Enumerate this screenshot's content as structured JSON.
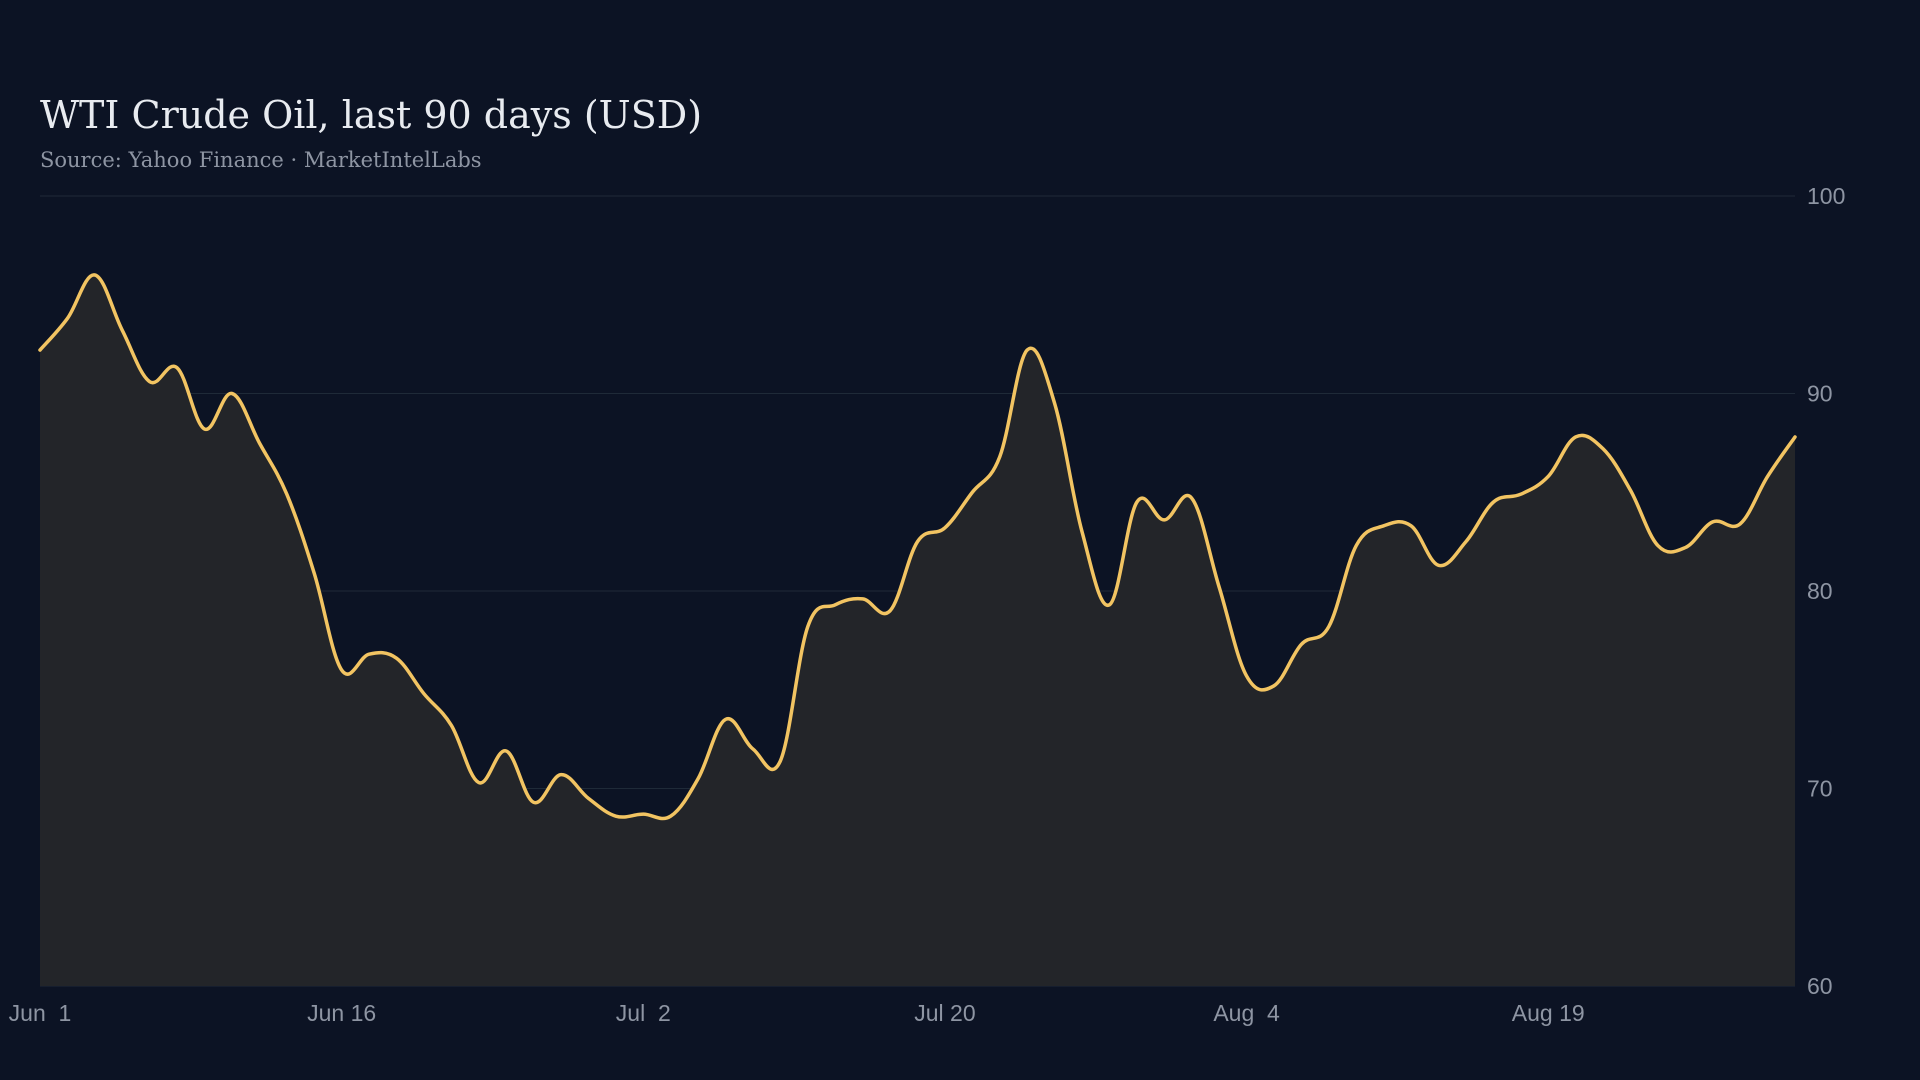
{
  "chart_data": {
    "type": "area",
    "title": "WTI Crude Oil, last 90 days (USD)",
    "subtitle": "Source: Yahoo Finance · MarketIntelLabs",
    "xlabel": "",
    "ylabel": "",
    "ylim": [
      60,
      100
    ],
    "y_ticks": [
      "60",
      "70",
      "80",
      "90",
      "100"
    ],
    "y_axis_side": "right",
    "grid": true,
    "legend": "none",
    "x_ticks": [
      {
        "label": "Jun  1",
        "index": 0
      },
      {
        "label": "Jun 16",
        "index": 11
      },
      {
        "label": "Jul  2",
        "index": 22
      },
      {
        "label": "Jul 20",
        "index": 33
      },
      {
        "label": "Aug  4",
        "index": 44
      },
      {
        "label": "Aug 19",
        "index": 55
      }
    ],
    "series": [
      {
        "color": "#f2c462",
        "values": [
          92.2,
          93.8,
          96.0,
          93.2,
          90.6,
          91.3,
          88.2,
          90.0,
          87.5,
          84.9,
          80.9,
          76.0,
          76.8,
          76.6,
          74.8,
          73.2,
          70.3,
          71.9,
          69.3,
          70.7,
          69.5,
          68.6,
          68.7,
          68.6,
          70.5,
          73.5,
          72.0,
          71.4,
          78.2,
          79.3,
          79.6,
          79.0,
          82.5,
          83.2,
          85.0,
          86.8,
          92.2,
          89.5,
          83.0,
          79.3,
          84.5,
          83.6,
          84.7,
          80.2,
          75.7,
          75.2,
          77.3,
          78.2,
          82.3,
          83.3,
          83.3,
          81.3,
          82.5,
          84.5,
          84.9,
          85.8,
          87.8,
          87.2,
          85.1,
          82.3,
          82.2,
          83.5,
          83.4,
          85.8,
          87.8
        ]
      }
    ]
  }
}
